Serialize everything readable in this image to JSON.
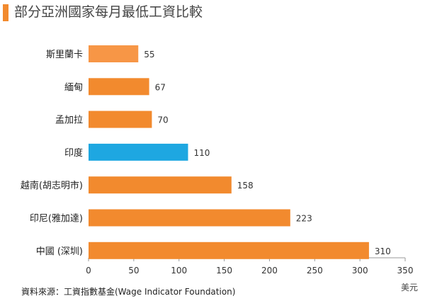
{
  "title": "部分亞洲國家每月最低工資比較",
  "chart_data": {
    "type": "bar",
    "orientation": "horizontal",
    "categories": [
      "斯里蘭卡",
      "緬甸",
      "孟加拉",
      "印度",
      "越南(胡志明市)",
      "印尼(雅加達)",
      "中國 (深圳)"
    ],
    "values": [
      55,
      67,
      70,
      110,
      158,
      223,
      310
    ],
    "data_labels": [
      "55",
      "67",
      "70",
      "110",
      "158",
      "223",
      "310"
    ],
    "bar_colors": [
      "#F79646",
      "#F28A2E",
      "#F28A2E",
      "#1EA7E1",
      "#F28A2E",
      "#F28A2E",
      "#F28A2E"
    ],
    "xlim": [
      0,
      350
    ],
    "xticks": [
      0,
      50,
      100,
      150,
      200,
      250,
      300,
      350
    ],
    "xtick_labels": [
      "0",
      "50",
      "100",
      "150",
      "200",
      "250",
      "300",
      "350"
    ],
    "unit": "美元",
    "grid": false
  },
  "source": "資料來源：工資指數基金(Wage Indicator Foundation)",
  "accent_color": "#F28A2E"
}
